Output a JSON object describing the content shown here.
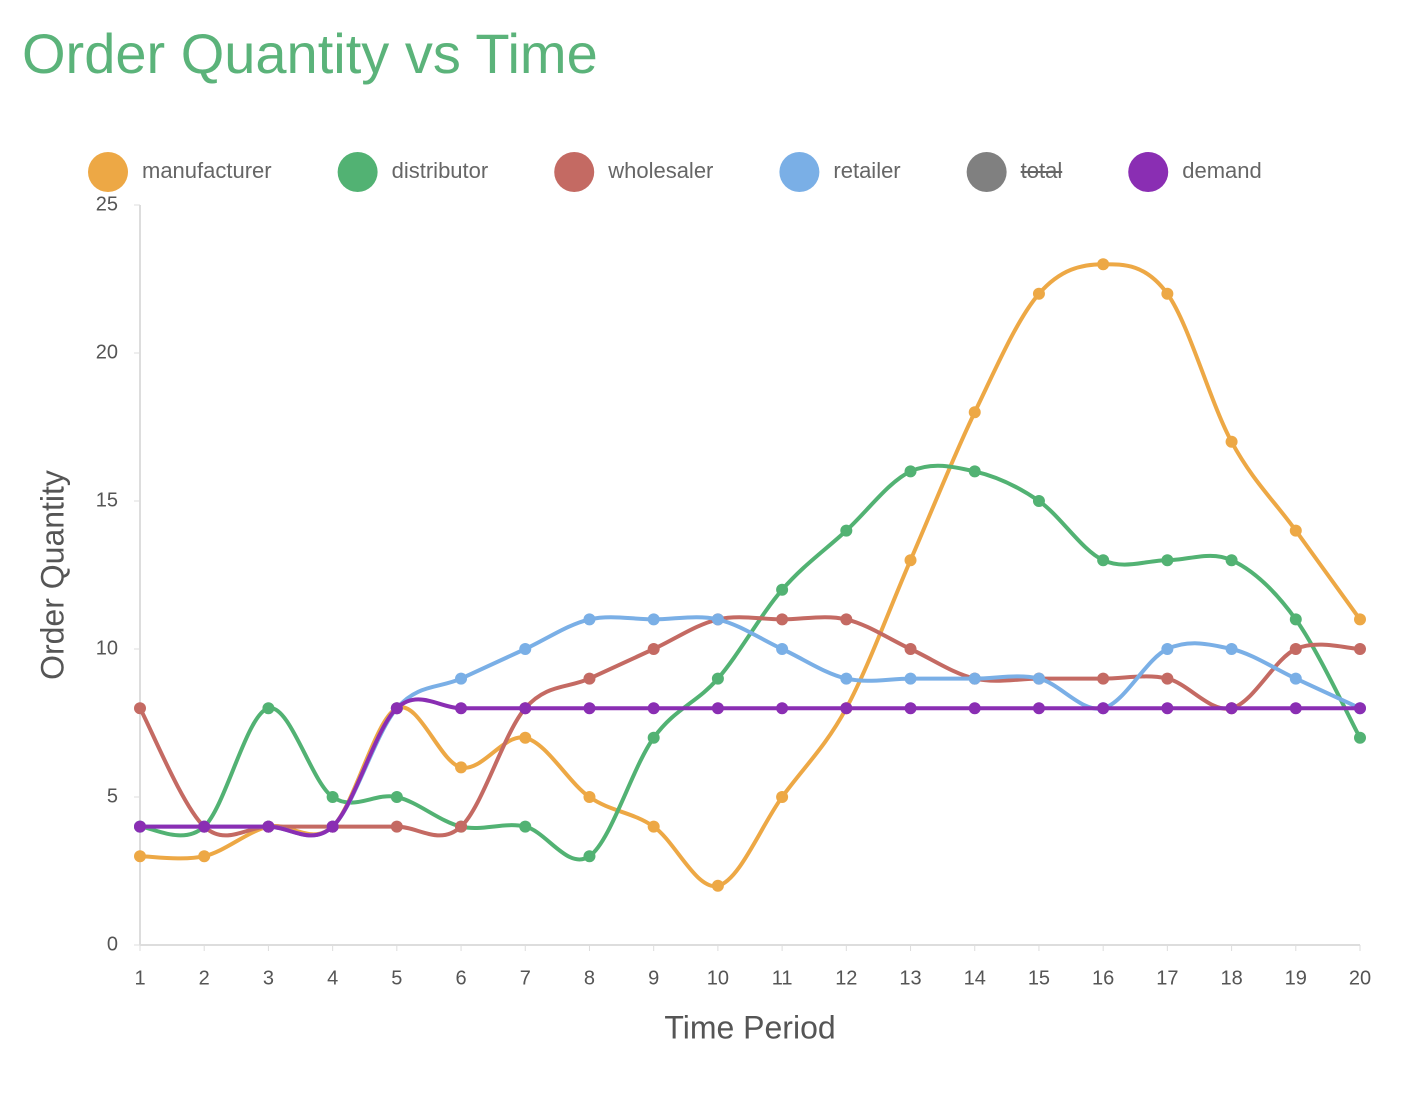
{
  "chart_data": {
    "type": "line",
    "title": "Order Quantity vs Time",
    "x_label": "Time Period",
    "y_label": "Order Quantity",
    "x": [
      1,
      2,
      3,
      4,
      5,
      6,
      7,
      8,
      9,
      10,
      11,
      12,
      13,
      14,
      15,
      16,
      17,
      18,
      19,
      20
    ],
    "xlim": [
      1,
      20
    ],
    "xticks": [
      1,
      2,
      3,
      4,
      5,
      6,
      7,
      8,
      9,
      10,
      11,
      12,
      13,
      14,
      15,
      16,
      17,
      18,
      19,
      20
    ],
    "ylim": [
      0,
      25
    ],
    "yticks": [
      0,
      5,
      10,
      15,
      20,
      25
    ],
    "smooth": true,
    "legend": "top",
    "series": [
      {
        "name": "manufacturer",
        "color": "#eda845",
        "values": [
          3,
          3,
          4,
          4,
          8,
          6,
          7,
          5,
          4,
          2,
          5,
          8,
          13,
          18,
          22,
          23,
          22,
          17,
          14,
          11
        ]
      },
      {
        "name": "distributor",
        "color": "#52b273",
        "values": [
          4,
          4,
          8,
          5,
          5,
          4,
          4,
          3,
          7,
          9,
          12,
          14,
          16,
          16,
          15,
          13,
          13,
          13,
          11,
          7
        ]
      },
      {
        "name": "wholesaler",
        "color": "#c46a63",
        "values": [
          8,
          4,
          4,
          4,
          4,
          4,
          8,
          9,
          10,
          11,
          11,
          11,
          10,
          9,
          9,
          9,
          9,
          8,
          10,
          10
        ]
      },
      {
        "name": "retailer",
        "color": "#7aafe6",
        "values": [
          4,
          4,
          4,
          4,
          8,
          9,
          10,
          11,
          11,
          11,
          10,
          9,
          9,
          9,
          9,
          8,
          10,
          10,
          9,
          8
        ]
      },
      {
        "name": "demand",
        "color": "#8a2eb3",
        "values": [
          4,
          4,
          4,
          4,
          8,
          8,
          8,
          8,
          8,
          8,
          8,
          8,
          8,
          8,
          8,
          8,
          8,
          8,
          8,
          8
        ]
      }
    ],
    "hidden_series": [
      {
        "name": "total",
        "color": "#808080"
      }
    ]
  }
}
